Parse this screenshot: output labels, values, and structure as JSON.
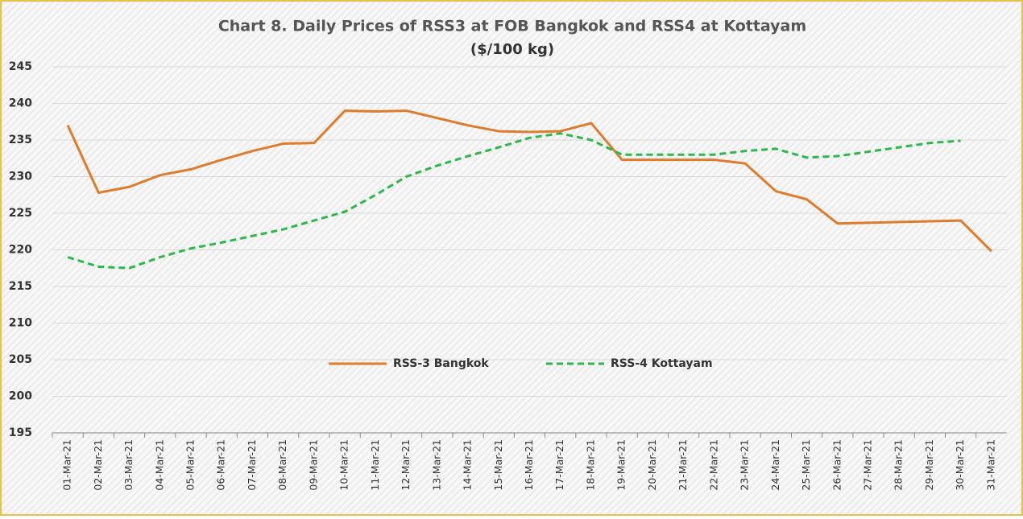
{
  "chart_data": {
    "type": "line",
    "title": "Chart 8. Daily Prices of RSS3 at FOB Bangkok and RSS4 at Kottayam",
    "subtitle": "($/100 kg)",
    "categories": [
      "01-Mar-21",
      "02-Mar-21",
      "03-Mar-21",
      "04-Mar-21",
      "05-Mar-21",
      "06-Mar-21",
      "07-Mar-21",
      "08-Mar-21",
      "09-Mar-21",
      "10-Mar-21",
      "11-Mar-21",
      "12-Mar-21",
      "13-Mar-21",
      "14-Mar-21",
      "15-Mar-21",
      "16-Mar-21",
      "17-Mar-21",
      "18-Mar-21",
      "19-Mar-21",
      "20-Mar-21",
      "21-Mar-21",
      "22-Mar-21",
      "23-Mar-21",
      "24-Mar-21",
      "25-Mar-21",
      "26-Mar-21",
      "27-Mar-21",
      "28-Mar-21",
      "29-Mar-21",
      "30-Mar-21",
      "31-Mar-21"
    ],
    "series": [
      {
        "name": "RSS-3 Bangkok",
        "color": "#e07b2a",
        "dashed": false,
        "values": [
          237,
          227.8,
          228.6,
          230.2,
          231,
          232.3,
          233.5,
          234.5,
          234.6,
          239,
          238.9,
          239,
          238,
          237,
          236.2,
          236.1,
          236.2,
          237.3,
          232.3,
          232.3,
          232.3,
          232.3,
          231.8,
          228,
          226.9,
          223.6,
          223.7,
          223.8,
          223.9,
          224,
          219.8
        ]
      },
      {
        "name": "RSS-4 Kottayam",
        "color": "#2db84a",
        "dashed": true,
        "values": [
          219,
          217.7,
          217.5,
          219,
          220.2,
          221,
          221.9,
          222.8,
          224,
          225.2,
          227.5,
          230,
          231.5,
          232.8,
          234,
          235.3,
          235.9,
          235,
          233,
          233,
          233,
          233,
          233.5,
          233.8,
          232.6,
          232.8,
          233.4,
          234,
          234.6,
          234.9,
          null
        ]
      }
    ],
    "ylim": [
      195,
      245
    ],
    "yticks": [
      195,
      200,
      205,
      210,
      215,
      220,
      225,
      230,
      235,
      240,
      245
    ],
    "grid": true,
    "legend": "center"
  }
}
